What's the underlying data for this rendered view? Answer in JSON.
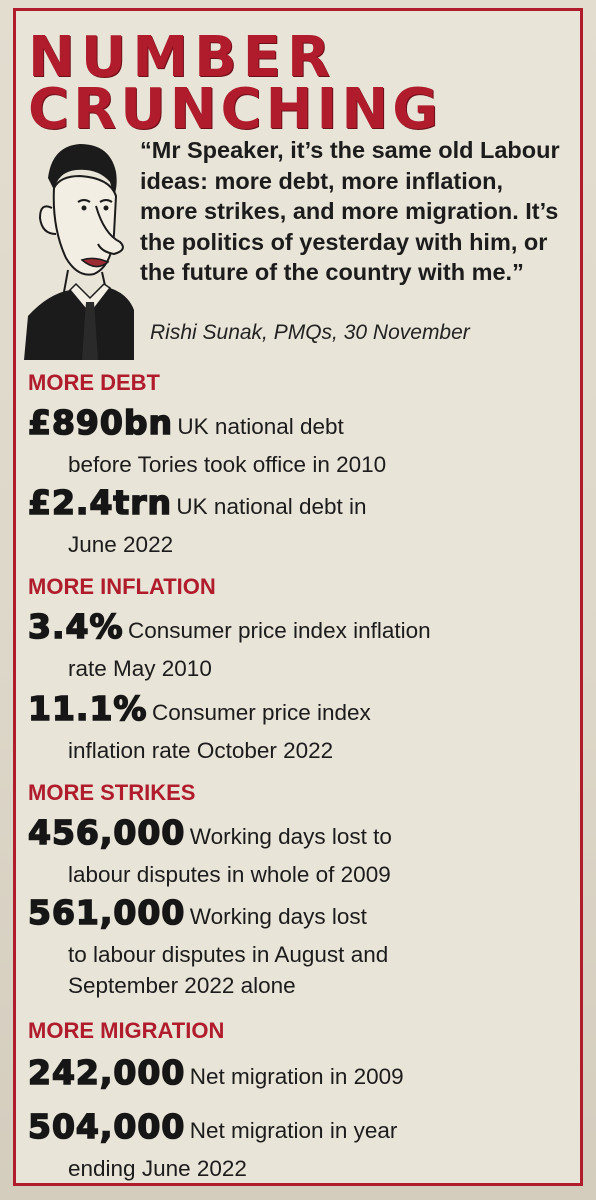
{
  "title": {
    "line1": "NUMBER",
    "line2": "CRUNCHING"
  },
  "quote": "“Mr Speaker, it’s the same old Labour ideas: more debt, more inflation, more strikes, and more migration. It’s the politics of yesterday with him, or the future of the country with me.”",
  "attribution": "Rishi Sunak, PMQs, 30 November",
  "sections": [
    {
      "heading": "MORE DEBT",
      "stats": [
        {
          "value": "£890bn",
          "line1": "UK national debt",
          "line2": "before Tories took office in 2010"
        },
        {
          "value": "£2.4trn",
          "line1": "UK national debt in",
          "line2": "June 2022"
        }
      ]
    },
    {
      "heading": "MORE INFLATION",
      "stats": [
        {
          "value": "3.4%",
          "line1": "Consumer price index inflation",
          "line2": "rate May 2010"
        },
        {
          "value": "11.1%",
          "line1": "Consumer price index",
          "line2": "inflation rate October 2022"
        }
      ]
    },
    {
      "heading": "MORE STRIKES",
      "stats": [
        {
          "value": "456,000",
          "line1": "Working days lost to",
          "line2": "labour disputes in whole of 2009"
        },
        {
          "value": "561,000",
          "line1": "Working days lost",
          "line2": "to labour disputes in August and",
          "line3": "September 2022 alone"
        }
      ]
    },
    {
      "heading": "MORE MIGRATION",
      "stats": [
        {
          "value": "242,000",
          "line1": "Net migration in 2009"
        },
        {
          "value": "504,000",
          "line1": "Net migration in year",
          "line2": "ending June 2022"
        }
      ]
    }
  ],
  "colors": {
    "accent": "#b01c2c",
    "paper": "#e9e4d8",
    "ink": "#1a1a1a"
  }
}
